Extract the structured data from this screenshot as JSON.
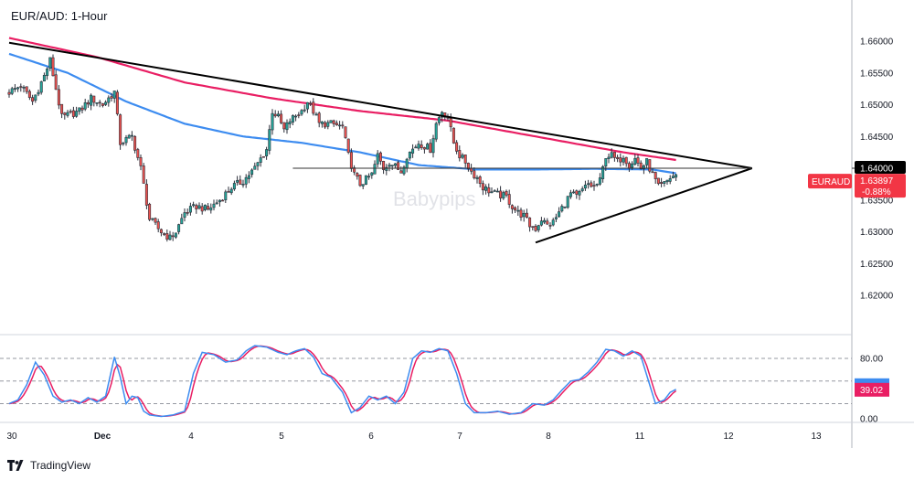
{
  "title": "EUR/AUD: 1-Hour",
  "watermark": "Babypips",
  "footer_brand": "TradingView",
  "colors": {
    "up": "#26a69a",
    "down": "#ef5350",
    "candle_body": "#2a2e39",
    "ma_pink": "#e91e63",
    "ma_blue": "#3d8cf0",
    "stoch_k": "#3d8cf0",
    "stoch_d": "#e91e63",
    "trendline": "#000000",
    "price_tag_bg": "#f23645",
    "level_tag_bg": "#000000"
  },
  "chart_data": [
    {
      "type": "candlestick",
      "symbol": "EURAUD",
      "timeframe": "1-Hour",
      "x_ticks": [
        "30",
        "Dec",
        "4",
        "5",
        "6",
        "7",
        "8",
        "11",
        "12",
        "13"
      ],
      "y_ticks": [
        "1.66000",
        "1.65500",
        "1.65000",
        "1.64500",
        "1.64000",
        "1.63500",
        "1.63000",
        "1.62500",
        "1.62000"
      ],
      "ylim": [
        1.618,
        1.664
      ],
      "close_anchors": [
        {
          "x": 0,
          "y": 1.652
        },
        {
          "x": 4,
          "y": 1.653
        },
        {
          "x": 8,
          "y": 1.6505
        },
        {
          "x": 12,
          "y": 1.6545
        },
        {
          "x": 14,
          "y": 1.657
        },
        {
          "x": 18,
          "y": 1.648
        },
        {
          "x": 24,
          "y": 1.649
        },
        {
          "x": 28,
          "y": 1.651
        },
        {
          "x": 32,
          "y": 1.65
        },
        {
          "x": 36,
          "y": 1.652
        },
        {
          "x": 38,
          "y": 1.644
        },
        {
          "x": 42,
          "y": 1.645
        },
        {
          "x": 45,
          "y": 1.64
        },
        {
          "x": 48,
          "y": 1.632
        },
        {
          "x": 52,
          "y": 1.63
        },
        {
          "x": 55,
          "y": 1.629
        },
        {
          "x": 57,
          "y": 1.63
        },
        {
          "x": 60,
          "y": 1.633
        },
        {
          "x": 64,
          "y": 1.634
        },
        {
          "x": 68,
          "y": 1.6335
        },
        {
          "x": 72,
          "y": 1.635
        },
        {
          "x": 76,
          "y": 1.637
        },
        {
          "x": 80,
          "y": 1.638
        },
        {
          "x": 84,
          "y": 1.64
        },
        {
          "x": 88,
          "y": 1.643
        },
        {
          "x": 90,
          "y": 1.649
        },
        {
          "x": 92,
          "y": 1.648
        },
        {
          "x": 94,
          "y": 1.646
        },
        {
          "x": 96,
          "y": 1.6475
        },
        {
          "x": 100,
          "y": 1.649
        },
        {
          "x": 102,
          "y": 1.6505
        },
        {
          "x": 104,
          "y": 1.649
        },
        {
          "x": 106,
          "y": 1.647
        },
        {
          "x": 110,
          "y": 1.647
        },
        {
          "x": 114,
          "y": 1.6465
        },
        {
          "x": 116,
          "y": 1.642
        },
        {
          "x": 118,
          "y": 1.639
        },
        {
          "x": 120,
          "y": 1.6375
        },
        {
          "x": 124,
          "y": 1.639
        },
        {
          "x": 126,
          "y": 1.642
        },
        {
          "x": 128,
          "y": 1.64
        },
        {
          "x": 130,
          "y": 1.641
        },
        {
          "x": 134,
          "y": 1.6395
        },
        {
          "x": 136,
          "y": 1.642
        },
        {
          "x": 140,
          "y": 1.644
        },
        {
          "x": 144,
          "y": 1.643
        },
        {
          "x": 146,
          "y": 1.647
        },
        {
          "x": 148,
          "y": 1.649
        },
        {
          "x": 150,
          "y": 1.648
        },
        {
          "x": 152,
          "y": 1.644
        },
        {
          "x": 154,
          "y": 1.642
        },
        {
          "x": 156,
          "y": 1.641
        },
        {
          "x": 158,
          "y": 1.6395
        },
        {
          "x": 160,
          "y": 1.6385
        },
        {
          "x": 162,
          "y": 1.637
        },
        {
          "x": 166,
          "y": 1.636
        },
        {
          "x": 170,
          "y": 1.6355
        },
        {
          "x": 172,
          "y": 1.634
        },
        {
          "x": 174,
          "y": 1.633
        },
        {
          "x": 176,
          "y": 1.6325
        },
        {
          "x": 178,
          "y": 1.631
        },
        {
          "x": 180,
          "y": 1.6305
        },
        {
          "x": 182,
          "y": 1.632
        },
        {
          "x": 184,
          "y": 1.631
        },
        {
          "x": 186,
          "y": 1.6315
        },
        {
          "x": 188,
          "y": 1.633
        },
        {
          "x": 190,
          "y": 1.6345
        },
        {
          "x": 192,
          "y": 1.636
        },
        {
          "x": 194,
          "y": 1.6355
        },
        {
          "x": 196,
          "y": 1.6365
        },
        {
          "x": 198,
          "y": 1.6375
        },
        {
          "x": 200,
          "y": 1.637
        },
        {
          "x": 202,
          "y": 1.638
        },
        {
          "x": 204,
          "y": 1.642
        },
        {
          "x": 206,
          "y": 1.642
        },
        {
          "x": 208,
          "y": 1.641
        },
        {
          "x": 210,
          "y": 1.642
        },
        {
          "x": 212,
          "y": 1.6405
        },
        {
          "x": 214,
          "y": 1.6415
        },
        {
          "x": 216,
          "y": 1.64
        },
        {
          "x": 218,
          "y": 1.641
        },
        {
          "x": 220,
          "y": 1.639
        },
        {
          "x": 222,
          "y": 1.637
        },
        {
          "x": 224,
          "y": 1.6375
        },
        {
          "x": 226,
          "y": 1.6385
        },
        {
          "x": 228,
          "y": 1.639
        }
      ],
      "series": [
        {
          "values_at": [
            {
              "x": 0,
              "y": 1.6605
            },
            {
              "x": 30,
              "y": 1.6575
            },
            {
              "x": 60,
              "y": 1.6535
            },
            {
              "x": 90,
              "y": 1.651
            },
            {
              "x": 120,
              "y": 1.649
            },
            {
              "x": 150,
              "y": 1.6475
            },
            {
              "x": 180,
              "y": 1.645
            },
            {
              "x": 210,
              "y": 1.6425
            },
            {
              "x": 228,
              "y": 1.6413
            }
          ]
        },
        {
          "values_at": [
            {
              "x": 0,
              "y": 1.658
            },
            {
              "x": 20,
              "y": 1.655
            },
            {
              "x": 40,
              "y": 1.6505
            },
            {
              "x": 60,
              "y": 1.647
            },
            {
              "x": 80,
              "y": 1.645
            },
            {
              "x": 100,
              "y": 1.644
            },
            {
              "x": 120,
              "y": 1.6425
            },
            {
              "x": 140,
              "y": 1.6405
            },
            {
              "x": 160,
              "y": 1.6398
            },
            {
              "x": 180,
              "y": 1.6398
            },
            {
              "x": 200,
              "y": 1.6399
            },
            {
              "x": 220,
              "y": 1.6398
            },
            {
              "x": 228,
              "y": 1.6392
            }
          ]
        }
      ],
      "trendlines": [
        {
          "x1": 0,
          "y1": 1.65975,
          "x2": 254,
          "y2": 1.64
        },
        {
          "x1": 180,
          "y1": 1.6283,
          "x2": 254,
          "y2": 1.64
        },
        {
          "x1": 97,
          "y1": 1.64,
          "x2": 254,
          "y2": 1.64
        }
      ],
      "price_label": {
        "symbol": "EURAUD",
        "price": "1.63897",
        "change": "-0.88%"
      },
      "level_label": "1.64000"
    },
    {
      "type": "line",
      "indicator": "stochastic",
      "ylim": [
        0,
        100
      ],
      "y_ticks": [
        "80.00",
        "0.00"
      ],
      "levels": [
        80,
        50,
        20
      ],
      "current_value": "39.02",
      "k_anchors": [
        {
          "x": 0,
          "y": 20
        },
        {
          "x": 3,
          "y": 25
        },
        {
          "x": 6,
          "y": 45
        },
        {
          "x": 9,
          "y": 75
        },
        {
          "x": 12,
          "y": 58
        },
        {
          "x": 15,
          "y": 30
        },
        {
          "x": 18,
          "y": 22
        },
        {
          "x": 21,
          "y": 25
        },
        {
          "x": 24,
          "y": 20
        },
        {
          "x": 27,
          "y": 28
        },
        {
          "x": 30,
          "y": 22
        },
        {
          "x": 33,
          "y": 30
        },
        {
          "x": 36,
          "y": 82
        },
        {
          "x": 38,
          "y": 55
        },
        {
          "x": 40,
          "y": 20
        },
        {
          "x": 42,
          "y": 30
        },
        {
          "x": 44,
          "y": 28
        },
        {
          "x": 46,
          "y": 10
        },
        {
          "x": 48,
          "y": 5
        },
        {
          "x": 52,
          "y": 3
        },
        {
          "x": 56,
          "y": 5
        },
        {
          "x": 60,
          "y": 10
        },
        {
          "x": 63,
          "y": 60
        },
        {
          "x": 66,
          "y": 88
        },
        {
          "x": 70,
          "y": 85
        },
        {
          "x": 74,
          "y": 75
        },
        {
          "x": 78,
          "y": 78
        },
        {
          "x": 81,
          "y": 90
        },
        {
          "x": 84,
          "y": 97
        },
        {
          "x": 88,
          "y": 95
        },
        {
          "x": 92,
          "y": 88
        },
        {
          "x": 95,
          "y": 85
        },
        {
          "x": 98,
          "y": 90
        },
        {
          "x": 101,
          "y": 93
        },
        {
          "x": 104,
          "y": 82
        },
        {
          "x": 107,
          "y": 60
        },
        {
          "x": 110,
          "y": 55
        },
        {
          "x": 114,
          "y": 35
        },
        {
          "x": 117,
          "y": 8
        },
        {
          "x": 120,
          "y": 15
        },
        {
          "x": 123,
          "y": 30
        },
        {
          "x": 126,
          "y": 25
        },
        {
          "x": 129,
          "y": 30
        },
        {
          "x": 132,
          "y": 20
        },
        {
          "x": 135,
          "y": 35
        },
        {
          "x": 138,
          "y": 80
        },
        {
          "x": 141,
          "y": 90
        },
        {
          "x": 144,
          "y": 88
        },
        {
          "x": 147,
          "y": 93
        },
        {
          "x": 150,
          "y": 90
        },
        {
          "x": 153,
          "y": 60
        },
        {
          "x": 156,
          "y": 20
        },
        {
          "x": 159,
          "y": 8
        },
        {
          "x": 163,
          "y": 8
        },
        {
          "x": 167,
          "y": 10
        },
        {
          "x": 171,
          "y": 6
        },
        {
          "x": 175,
          "y": 8
        },
        {
          "x": 179,
          "y": 20
        },
        {
          "x": 183,
          "y": 18
        },
        {
          "x": 186,
          "y": 25
        },
        {
          "x": 189,
          "y": 38
        },
        {
          "x": 192,
          "y": 50
        },
        {
          "x": 195,
          "y": 52
        },
        {
          "x": 198,
          "y": 62
        },
        {
          "x": 201,
          "y": 75
        },
        {
          "x": 204,
          "y": 92
        },
        {
          "x": 207,
          "y": 90
        },
        {
          "x": 210,
          "y": 83
        },
        {
          "x": 213,
          "y": 90
        },
        {
          "x": 216,
          "y": 83
        },
        {
          "x": 219,
          "y": 45
        },
        {
          "x": 221,
          "y": 20
        },
        {
          "x": 224,
          "y": 25
        },
        {
          "x": 226,
          "y": 35
        },
        {
          "x": 228,
          "y": 39
        }
      ]
    }
  ]
}
